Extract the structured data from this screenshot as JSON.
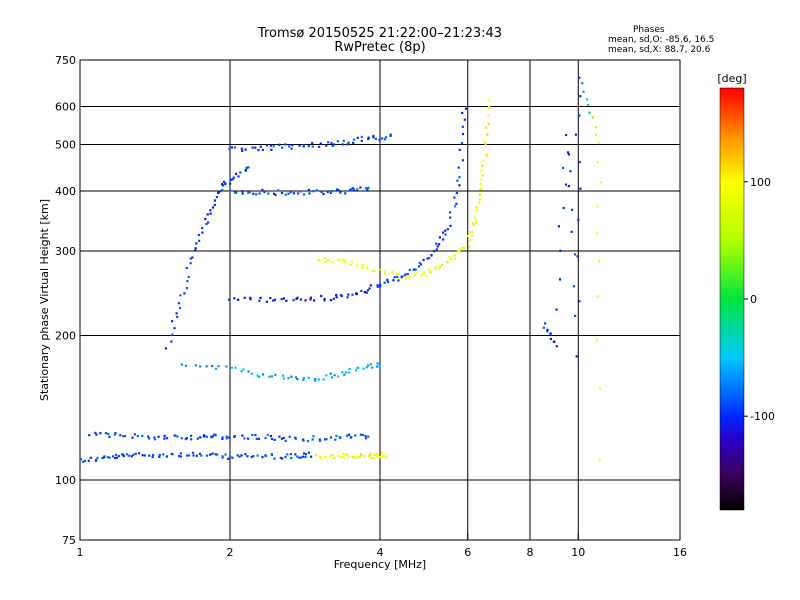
{
  "header": {
    "title": "Tromsø 20150525 21:22:00–21:23:43",
    "subtitle": "RwPretec (8p)"
  },
  "phase_info": {
    "title": "Phases",
    "o_stats": "mean, sd,O: -85.6, 16.5",
    "x_stats": "mean, sd,X: 88.7, 20.6"
  },
  "colorbar": {
    "label": "[deg]",
    "ticks": [
      {
        "value": 100,
        "label": "100"
      },
      {
        "value": 0,
        "label": "0"
      },
      {
        "value": -100,
        "label": "-100"
      }
    ],
    "range": [
      -180,
      180
    ]
  },
  "chart_data": {
    "type": "scatter",
    "title": "Tromsø 20150525 21:22:00–21:23:43",
    "subtitle": "RwPretec (8p)",
    "xlabel": "Frequency [MHz]",
    "ylabel": "Stationary phase Virtual Height [km]",
    "x_scale": "log",
    "y_scale": "log",
    "xlim": [
      1,
      16
    ],
    "ylim": [
      75,
      750
    ],
    "x_ticks": [
      1,
      2,
      4,
      6,
      8,
      10,
      16
    ],
    "y_ticks": [
      75,
      100,
      200,
      300,
      400,
      500,
      600,
      750
    ],
    "x_grid": [
      2,
      4,
      6,
      8,
      10
    ],
    "y_grid": [
      100,
      200,
      300,
      400,
      500,
      600
    ],
    "color_scale": "phase [deg], -180 to 180",
    "series": [
      {
        "x": [
          1.0,
          1.1,
          1.2,
          1.3,
          1.5,
          1.7,
          1.9,
          2.1,
          2.4,
          2.7,
          2.9
        ],
        "y": [
          110,
          111,
          112,
          113,
          113,
          113,
          112,
          112,
          112,
          112,
          113
        ],
        "phase": [
          -90,
          -90,
          -90,
          -90,
          -90,
          -90,
          -90,
          -90,
          -90,
          -90,
          -90
        ]
      },
      {
        "x": [
          3.0,
          3.3,
          3.6,
          3.9,
          4.1
        ],
        "y": [
          112,
          112,
          112,
          112,
          113
        ],
        "phase": [
          100,
          100,
          100,
          100,
          100
        ]
      },
      {
        "x": [
          1.05,
          1.2,
          1.4,
          1.6,
          1.8,
          2.0,
          2.3,
          2.6,
          3.0,
          3.4,
          3.8
        ],
        "y": [
          124,
          124,
          123,
          123,
          123,
          123,
          123,
          122,
          122,
          123,
          123
        ],
        "phase": [
          -90,
          -90,
          -90,
          -90,
          -90,
          -90,
          -90,
          -90,
          -90,
          -90,
          -90
        ]
      },
      {
        "x": [
          1.5,
          1.6,
          1.7,
          1.8,
          1.9,
          2.0,
          2.2
        ],
        "y": [
          190,
          240,
          300,
          350,
          400,
          420,
          450
        ],
        "phase": [
          -95,
          -95,
          -95,
          -95,
          -95,
          -95,
          -95
        ]
      },
      {
        "x": [
          2.0,
          2.4,
          2.8,
          3.2,
          3.6,
          4.0,
          4.4,
          4.8,
          5.2,
          5.5,
          5.8,
          5.9
        ],
        "y": [
          238,
          238,
          238,
          240,
          245,
          255,
          265,
          280,
          305,
          340,
          430,
          600
        ],
        "phase": [
          -110,
          -110,
          -105,
          -105,
          -100,
          -100,
          -95,
          -90,
          -95,
          -90,
          -95,
          -100
        ]
      },
      {
        "x": [
          3.0,
          3.4,
          3.8,
          4.4,
          5.0,
          5.5,
          6.0,
          6.2,
          6.4,
          6.5,
          6.6
        ],
        "y": [
          290,
          285,
          275,
          265,
          270,
          285,
          310,
          350,
          400,
          480,
          620
        ],
        "phase": [
          90,
          95,
          85,
          90,
          90,
          80,
          90,
          95,
          100,
          110,
          100
        ]
      },
      {
        "x": [
          2.0,
          2.3,
          2.6,
          3.0,
          3.4,
          3.8
        ],
        "y": [
          400,
          398,
          397,
          398,
          400,
          405
        ],
        "phase": [
          -90,
          -90,
          -90,
          -90,
          -90,
          -90
        ]
      },
      {
        "x": [
          2.0,
          2.3,
          2.6,
          3.0,
          3.4,
          3.8,
          4.2
        ],
        "y": [
          488,
          492,
          495,
          500,
          505,
          515,
          520
        ],
        "phase": [
          -95,
          -95,
          -95,
          -90,
          -90,
          -90,
          -90
        ]
      },
      {
        "x": [
          1.6,
          2.0,
          2.4,
          2.8,
          3.2,
          3.6,
          4.0
        ],
        "y": [
          175,
          170,
          165,
          162,
          165,
          170,
          175
        ],
        "phase": [
          -60,
          -60,
          -60,
          -60,
          -60,
          -60,
          -60
        ]
      },
      {
        "x": [
          8.5,
          9.0,
          9.5,
          10.0,
          10.0,
          11.0,
          11.0
        ],
        "y": [
          210,
          190,
          520,
          180,
          690,
          500,
          110
        ],
        "phase": [
          -100,
          -100,
          -100,
          -100,
          -100,
          100,
          90
        ]
      }
    ]
  }
}
